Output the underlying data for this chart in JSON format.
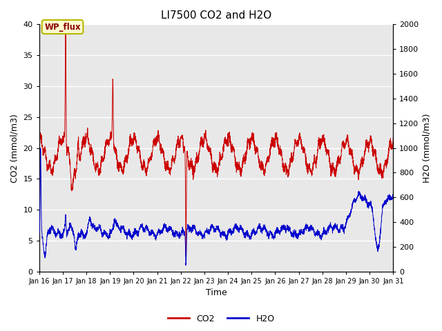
{
  "title": "LI7500 CO2 and H2O",
  "xlabel": "Time",
  "ylabel_left": "CO2 (mmol/m3)",
  "ylabel_right": "H2O (mmol/m3)",
  "ylim_left": [
    0,
    40
  ],
  "ylim_right": [
    0,
    2000
  ],
  "yticks_left": [
    0,
    5,
    10,
    15,
    20,
    25,
    30,
    35,
    40
  ],
  "yticks_right": [
    0,
    200,
    400,
    600,
    800,
    1000,
    1200,
    1400,
    1600,
    1800,
    2000
  ],
  "xtick_labels": [
    "Jan 16",
    "Jan 17",
    "Jan 18",
    "Jan 19",
    "Jan 20",
    "Jan 21",
    "Jan 22",
    "Jan 23",
    "Jan 24",
    "Jan 25",
    "Jan 26",
    "Jan 27",
    "Jan 28",
    "Jan 29",
    "Jan 30",
    "Jan 31"
  ],
  "annotation_text": "WP_flux",
  "co2_color": "#cc0000",
  "h2o_color": "#0000cc",
  "bg_color": "#e8e8e8",
  "legend_co2": "CO2",
  "legend_h2o": "H2O",
  "n_points": 3000
}
